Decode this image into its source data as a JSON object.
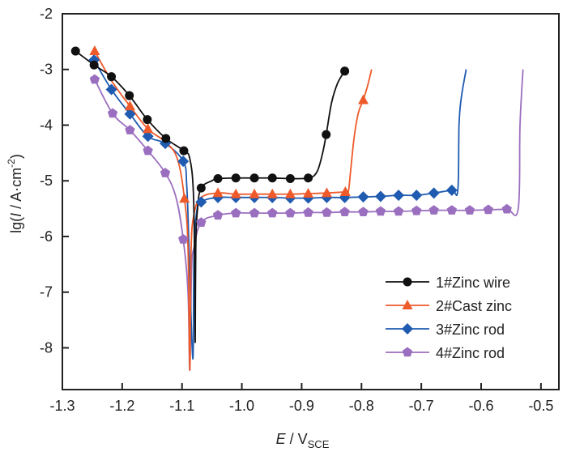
{
  "chart_data": {
    "type": "line",
    "title": "",
    "xlabel": {
      "main": "E",
      "sep": " / V",
      "sub": "SCE"
    },
    "ylabel": {
      "pre": "lg(",
      "italic": "I",
      "mid": " / A·cm",
      "sup": "-2",
      "post": ")"
    },
    "xlim": [
      -1.3,
      -0.47
    ],
    "ylim": [
      -8.75,
      -2
    ],
    "xticks": [
      -1.3,
      -1.2,
      -1.1,
      -1.0,
      -0.9,
      -0.8,
      -0.7,
      -0.6,
      -0.5
    ],
    "xtick_labels": [
      "-1.3",
      "-1.2",
      "-1.1",
      "-1.0",
      "-0.9",
      "-0.8",
      "-0.7",
      "-0.6",
      "-0.5"
    ],
    "yticks": [
      -2,
      -3,
      -4,
      -5,
      -6,
      -7,
      -8
    ],
    "ytick_labels": [
      "-2",
      "-3",
      "-4",
      "-5",
      "-6",
      "-7",
      "-8"
    ],
    "grid": false,
    "legend_position": "bottom-right",
    "series": [
      {
        "name": "1#Zinc wire",
        "color": "#111111",
        "marker": "circle",
        "curve": [
          [
            -1.278,
            -2.67
          ],
          [
            -1.247,
            -2.92
          ],
          [
            -1.218,
            -3.13
          ],
          [
            -1.188,
            -3.47
          ],
          [
            -1.158,
            -3.9
          ],
          [
            -1.127,
            -4.24
          ],
          [
            -1.097,
            -4.46
          ],
          [
            -1.087,
            -4.6
          ],
          [
            -1.081,
            -5.2
          ],
          [
            -1.079,
            -6.5
          ],
          [
            -1.078,
            -7.9
          ],
          [
            -1.077,
            -6.2
          ],
          [
            -1.074,
            -5.5
          ],
          [
            -1.068,
            -5.13
          ],
          [
            -1.05,
            -5.0
          ],
          [
            -1.04,
            -4.96
          ],
          [
            -1.01,
            -4.95
          ],
          [
            -0.979,
            -4.95
          ],
          [
            -0.949,
            -4.95
          ],
          [
            -0.919,
            -4.96
          ],
          [
            -0.889,
            -4.95
          ],
          [
            -0.875,
            -4.85
          ],
          [
            -0.866,
            -4.55
          ],
          [
            -0.859,
            -4.17
          ],
          [
            -0.85,
            -3.6
          ],
          [
            -0.84,
            -3.25
          ],
          [
            -0.828,
            -3.03
          ]
        ],
        "markers": [
          [
            -1.278,
            -2.67
          ],
          [
            -1.247,
            -2.92
          ],
          [
            -1.218,
            -3.13
          ],
          [
            -1.188,
            -3.47
          ],
          [
            -1.158,
            -3.9
          ],
          [
            -1.127,
            -4.24
          ],
          [
            -1.097,
            -4.46
          ],
          [
            -1.068,
            -5.13
          ],
          [
            -1.04,
            -4.96
          ],
          [
            -1.01,
            -4.95
          ],
          [
            -0.979,
            -4.95
          ],
          [
            -0.949,
            -4.95
          ],
          [
            -0.919,
            -4.96
          ],
          [
            -0.889,
            -4.95
          ],
          [
            -0.859,
            -4.17
          ],
          [
            -0.828,
            -3.03
          ]
        ]
      },
      {
        "name": "2#Cast zinc",
        "color": "#EE5A2A",
        "marker": "triangle",
        "curve": [
          [
            -1.246,
            -2.67
          ],
          [
            -1.218,
            -3.2
          ],
          [
            -1.187,
            -3.66
          ],
          [
            -1.157,
            -4.07
          ],
          [
            -1.128,
            -4.3
          ],
          [
            -1.108,
            -4.6
          ],
          [
            -1.096,
            -5.32
          ],
          [
            -1.09,
            -6.2
          ],
          [
            -1.087,
            -8.4
          ],
          [
            -1.085,
            -6.3
          ],
          [
            -1.08,
            -5.6
          ],
          [
            -1.068,
            -5.3
          ],
          [
            -1.04,
            -5.22
          ],
          [
            -1.01,
            -5.24
          ],
          [
            -0.979,
            -5.24
          ],
          [
            -0.949,
            -5.24
          ],
          [
            -0.919,
            -5.24
          ],
          [
            -0.889,
            -5.23
          ],
          [
            -0.858,
            -5.22
          ],
          [
            -0.827,
            -5.2
          ],
          [
            -0.822,
            -5.2
          ],
          [
            -0.818,
            -4.8
          ],
          [
            -0.812,
            -4.2
          ],
          [
            -0.805,
            -3.77
          ],
          [
            -0.797,
            -3.55
          ],
          [
            -0.79,
            -3.3
          ],
          [
            -0.783,
            -3.0
          ]
        ],
        "markers": [
          [
            -1.246,
            -2.67
          ],
          [
            -1.187,
            -3.66
          ],
          [
            -1.157,
            -4.07
          ],
          [
            -1.096,
            -5.32
          ],
          [
            -1.04,
            -5.22
          ],
          [
            -1.01,
            -5.24
          ],
          [
            -0.979,
            -5.24
          ],
          [
            -0.949,
            -5.24
          ],
          [
            -0.919,
            -5.24
          ],
          [
            -0.889,
            -5.23
          ],
          [
            -0.858,
            -5.22
          ],
          [
            -0.827,
            -5.2
          ],
          [
            -0.797,
            -3.55
          ]
        ]
      },
      {
        "name": "3#Zinc rod",
        "color": "#1F5BB0",
        "marker": "diamond",
        "curve": [
          [
            -1.247,
            -2.83
          ],
          [
            -1.218,
            -3.36
          ],
          [
            -1.187,
            -3.8
          ],
          [
            -1.157,
            -4.2
          ],
          [
            -1.128,
            -4.33
          ],
          [
            -1.098,
            -4.65
          ],
          [
            -1.092,
            -5.1
          ],
          [
            -1.088,
            -6.3
          ],
          [
            -1.082,
            -8.2
          ],
          [
            -1.08,
            -6.4
          ],
          [
            -1.076,
            -5.6
          ],
          [
            -1.068,
            -5.38
          ],
          [
            -1.04,
            -5.3
          ],
          [
            -1.01,
            -5.3
          ],
          [
            -0.979,
            -5.3
          ],
          [
            -0.949,
            -5.3
          ],
          [
            -0.919,
            -5.31
          ],
          [
            -0.889,
            -5.31
          ],
          [
            -0.858,
            -5.3
          ],
          [
            -0.828,
            -5.3
          ],
          [
            -0.797,
            -5.29
          ],
          [
            -0.768,
            -5.28
          ],
          [
            -0.738,
            -5.26
          ],
          [
            -0.708,
            -5.26
          ],
          [
            -0.679,
            -5.22
          ],
          [
            -0.649,
            -5.17
          ],
          [
            -0.639,
            -5.17
          ],
          [
            -0.637,
            -4.0
          ],
          [
            -0.633,
            -3.5
          ],
          [
            -0.625,
            -3.0
          ]
        ],
        "markers": [
          [
            -1.247,
            -2.83
          ],
          [
            -1.218,
            -3.36
          ],
          [
            -1.187,
            -3.8
          ],
          [
            -1.157,
            -4.2
          ],
          [
            -1.128,
            -4.33
          ],
          [
            -1.098,
            -4.65
          ],
          [
            -1.068,
            -5.38
          ],
          [
            -1.04,
            -5.3
          ],
          [
            -1.01,
            -5.3
          ],
          [
            -0.979,
            -5.3
          ],
          [
            -0.949,
            -5.3
          ],
          [
            -0.919,
            -5.31
          ],
          [
            -0.889,
            -5.31
          ],
          [
            -0.858,
            -5.3
          ],
          [
            -0.828,
            -5.3
          ],
          [
            -0.797,
            -5.29
          ],
          [
            -0.768,
            -5.28
          ],
          [
            -0.738,
            -5.26
          ],
          [
            -0.708,
            -5.26
          ],
          [
            -0.679,
            -5.22
          ],
          [
            -0.649,
            -5.17
          ]
        ]
      },
      {
        "name": "4#Zinc rod",
        "color": "#9B6FBF",
        "marker": "pentagon",
        "curve": [
          [
            -1.246,
            -3.18
          ],
          [
            -1.216,
            -3.79
          ],
          [
            -1.187,
            -4.09
          ],
          [
            -1.157,
            -4.46
          ],
          [
            -1.128,
            -4.86
          ],
          [
            -1.11,
            -5.3
          ],
          [
            -1.098,
            -6.05
          ],
          [
            -1.09,
            -7.0
          ],
          [
            -1.087,
            -8.4
          ],
          [
            -1.084,
            -6.6
          ],
          [
            -1.08,
            -6.2
          ],
          [
            -1.068,
            -5.75
          ],
          [
            -1.04,
            -5.62
          ],
          [
            -1.01,
            -5.58
          ],
          [
            -0.979,
            -5.58
          ],
          [
            -0.949,
            -5.58
          ],
          [
            -0.919,
            -5.58
          ],
          [
            -0.889,
            -5.57
          ],
          [
            -0.858,
            -5.57
          ],
          [
            -0.828,
            -5.56
          ],
          [
            -0.797,
            -5.56
          ],
          [
            -0.768,
            -5.55
          ],
          [
            -0.738,
            -5.55
          ],
          [
            -0.708,
            -5.54
          ],
          [
            -0.679,
            -5.53
          ],
          [
            -0.649,
            -5.53
          ],
          [
            -0.619,
            -5.53
          ],
          [
            -0.588,
            -5.52
          ],
          [
            -0.557,
            -5.51
          ],
          [
            -0.538,
            -5.5
          ],
          [
            -0.535,
            -4.0
          ],
          [
            -0.53,
            -3.0
          ]
        ],
        "markers": [
          [
            -1.246,
            -3.18
          ],
          [
            -1.216,
            -3.79
          ],
          [
            -1.187,
            -4.09
          ],
          [
            -1.157,
            -4.46
          ],
          [
            -1.128,
            -4.86
          ],
          [
            -1.098,
            -6.05
          ],
          [
            -1.068,
            -5.75
          ],
          [
            -1.04,
            -5.62
          ],
          [
            -1.01,
            -5.58
          ],
          [
            -0.979,
            -5.58
          ],
          [
            -0.949,
            -5.58
          ],
          [
            -0.919,
            -5.58
          ],
          [
            -0.889,
            -5.57
          ],
          [
            -0.858,
            -5.57
          ],
          [
            -0.828,
            -5.56
          ],
          [
            -0.797,
            -5.56
          ],
          [
            -0.768,
            -5.55
          ],
          [
            -0.738,
            -5.55
          ],
          [
            -0.708,
            -5.54
          ],
          [
            -0.679,
            -5.53
          ],
          [
            -0.649,
            -5.53
          ],
          [
            -0.619,
            -5.53
          ],
          [
            -0.588,
            -5.52
          ],
          [
            -0.557,
            -5.51
          ]
        ]
      }
    ]
  }
}
